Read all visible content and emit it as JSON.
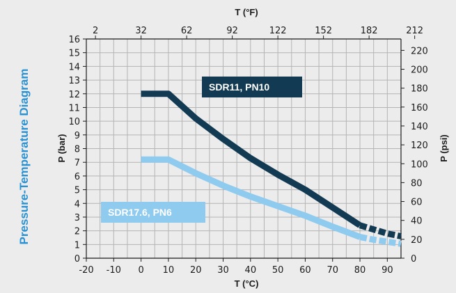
{
  "side_title": "Pressure-Temperature Diagram",
  "colors": {
    "background": "#ececec",
    "grid": "#b4b4b4",
    "axis": "#1a1a1a",
    "title": "#2a92d2",
    "series_dark": "#123a52",
    "series_light": "#8fcbef"
  },
  "chart_data": {
    "type": "line",
    "xlabel": "T (°C)",
    "ylabel": "P (bar)",
    "x2label": "T (°F)",
    "y2label": "P (psi)",
    "xlim": [
      -20,
      95
    ],
    "ylim": [
      0,
      16
    ],
    "x_ticks": [
      "-20",
      "-10",
      "0",
      "10",
      "20",
      "30",
      "40",
      "50",
      "60",
      "70",
      "80",
      "90"
    ],
    "y_ticks": [
      "0",
      "1",
      "2",
      "3",
      "4",
      "5",
      "6",
      "7",
      "8",
      "9",
      "10",
      "11",
      "12",
      "13",
      "14",
      "15",
      "16"
    ],
    "x2_ticks": [
      "2",
      "32",
      "62",
      "92",
      "122",
      "152",
      "182",
      "212"
    ],
    "y2_ticks": [
      "0",
      "20",
      "40",
      "60",
      "80",
      "100",
      "120",
      "140",
      "160",
      "180",
      "200",
      "220"
    ],
    "grid": true,
    "series": [
      {
        "name": "SDR11, PN10",
        "color": "#123a52",
        "x": [
          0,
          10,
          20,
          30,
          40,
          50,
          60,
          70,
          80
        ],
        "y": [
          12.0,
          12.0,
          10.2,
          8.7,
          7.3,
          6.1,
          5.0,
          3.7,
          2.4
        ],
        "dashed_x": [
          80,
          85,
          90,
          95
        ],
        "dashed_y": [
          2.4,
          2.1,
          1.8,
          1.6
        ]
      },
      {
        "name": "SDR17.6, PN6",
        "color": "#8fcbef",
        "x": [
          0,
          10,
          20,
          30,
          40,
          50,
          60,
          70,
          80
        ],
        "y": [
          7.2,
          7.2,
          6.2,
          5.3,
          4.5,
          3.8,
          3.1,
          2.3,
          1.55
        ],
        "dashed_x": [
          80,
          85,
          90,
          95
        ],
        "dashed_y": [
          1.55,
          1.35,
          1.2,
          1.05
        ]
      }
    ]
  }
}
